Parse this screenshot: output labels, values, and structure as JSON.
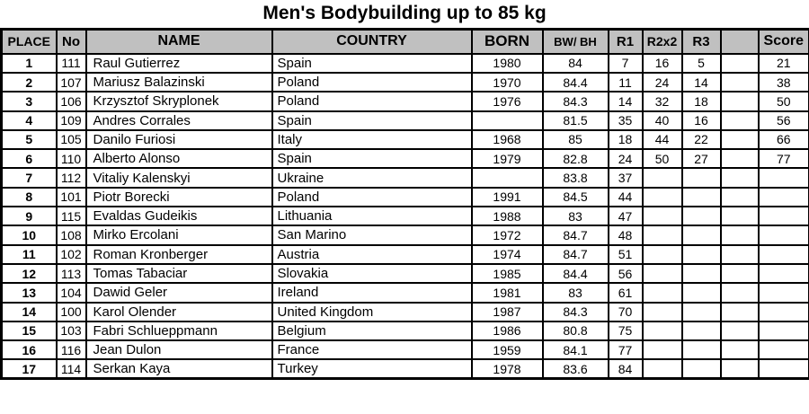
{
  "title": "Men's Bodybuilding up to 85 kg",
  "colors": {
    "header_bg": "#c0c0c0",
    "border": "#000000",
    "row_bg": "#ffffff",
    "text": "#000000"
  },
  "table": {
    "columns": [
      {
        "key": "place",
        "label": "PLACE"
      },
      {
        "key": "no",
        "label": "No"
      },
      {
        "key": "name",
        "label": "NAME"
      },
      {
        "key": "country",
        "label": "COUNTRY"
      },
      {
        "key": "born",
        "label": "BORN"
      },
      {
        "key": "bw_bh",
        "label": "BW/ BH"
      },
      {
        "key": "r1",
        "label": "R1"
      },
      {
        "key": "r2x2",
        "label": "R2x2"
      },
      {
        "key": "r3",
        "label": "R3"
      },
      {
        "key": "blank",
        "label": ""
      },
      {
        "key": "score",
        "label": "Score"
      }
    ],
    "rows": [
      {
        "place": "1",
        "no": "111",
        "name": "Raul Gutierrez",
        "country": "Spain",
        "born": "1980",
        "bw_bh": "84",
        "r1": "7",
        "r2x2": "16",
        "r3": "5",
        "blank": "",
        "score": "21"
      },
      {
        "place": "2",
        "no": "107",
        "name": "Mariusz Balazinski",
        "country": "Poland",
        "born": "1970",
        "bw_bh": "84.4",
        "r1": "11",
        "r2x2": "24",
        "r3": "14",
        "blank": "",
        "score": "38"
      },
      {
        "place": "3",
        "no": "106",
        "name": "Krzysztof Skryplonek",
        "country": "Poland",
        "born": "1976",
        "bw_bh": "84.3",
        "r1": "14",
        "r2x2": "32",
        "r3": "18",
        "blank": "",
        "score": "50"
      },
      {
        "place": "4",
        "no": "109",
        "name": "Andres Corrales",
        "country": "Spain",
        "born": "",
        "bw_bh": "81.5",
        "r1": "35",
        "r2x2": "40",
        "r3": "16",
        "blank": "",
        "score": "56"
      },
      {
        "place": "5",
        "no": "105",
        "name": "Danilo Furiosi",
        "country": "Italy",
        "born": "1968",
        "bw_bh": "85",
        "r1": "18",
        "r2x2": "44",
        "r3": "22",
        "blank": "",
        "score": "66"
      },
      {
        "place": "6",
        "no": "110",
        "name": "Alberto Alonso",
        "country": "Spain",
        "born": "1979",
        "bw_bh": "82.8",
        "r1": "24",
        "r2x2": "50",
        "r3": "27",
        "blank": "",
        "score": "77"
      },
      {
        "place": "7",
        "no": "112",
        "name": "Vitaliy Kalenskyi",
        "country": "Ukraine",
        "born": "",
        "bw_bh": "83.8",
        "r1": "37",
        "r2x2": "",
        "r3": "",
        "blank": "",
        "score": ""
      },
      {
        "place": "8",
        "no": "101",
        "name": "Piotr Borecki",
        "country": "Poland",
        "born": "1991",
        "bw_bh": "84.5",
        "r1": "44",
        "r2x2": "",
        "r3": "",
        "blank": "",
        "score": ""
      },
      {
        "place": "9",
        "no": "115",
        "name": "Evaldas Gudeikis",
        "country": "Lithuania",
        "born": "1988",
        "bw_bh": "83",
        "r1": "47",
        "r2x2": "",
        "r3": "",
        "blank": "",
        "score": ""
      },
      {
        "place": "10",
        "no": "108",
        "name": "Mirko Ercolani",
        "country": "San Marino",
        "born": "1972",
        "bw_bh": "84.7",
        "r1": "48",
        "r2x2": "",
        "r3": "",
        "blank": "",
        "score": ""
      },
      {
        "place": "11",
        "no": "102",
        "name": "Roman Kronberger",
        "country": "Austria",
        "born": "1974",
        "bw_bh": "84.7",
        "r1": "51",
        "r2x2": "",
        "r3": "",
        "blank": "",
        "score": ""
      },
      {
        "place": "12",
        "no": "113",
        "name": "Tomas Tabaciar",
        "country": "Slovakia",
        "born": "1985",
        "bw_bh": "84.4",
        "r1": "56",
        "r2x2": "",
        "r3": "",
        "blank": "",
        "score": ""
      },
      {
        "place": "13",
        "no": "104",
        "name": "Dawid Geler",
        "country": "Ireland",
        "born": "1981",
        "bw_bh": "83",
        "r1": "61",
        "r2x2": "",
        "r3": "",
        "blank": "",
        "score": ""
      },
      {
        "place": "14",
        "no": "100",
        "name": "Karol Olender",
        "country": "United Kingdom",
        "born": "1987",
        "bw_bh": "84.3",
        "r1": "70",
        "r2x2": "",
        "r3": "",
        "blank": "",
        "score": ""
      },
      {
        "place": "15",
        "no": "103",
        "name": "Fabri Schlueppmann",
        "country": "Belgium",
        "born": "1986",
        "bw_bh": "80.8",
        "r1": "75",
        "r2x2": "",
        "r3": "",
        "blank": "",
        "score": ""
      },
      {
        "place": "16",
        "no": "116",
        "name": "Jean Dulon",
        "country": "France",
        "born": "1959",
        "bw_bh": "84.1",
        "r1": "77",
        "r2x2": "",
        "r3": "",
        "blank": "",
        "score": ""
      },
      {
        "place": "17",
        "no": "114",
        "name": "Serkan Kaya",
        "country": "Turkey",
        "born": "1978",
        "bw_bh": "83.6",
        "r1": "84",
        "r2x2": "",
        "r3": "",
        "blank": "",
        "score": ""
      }
    ]
  }
}
